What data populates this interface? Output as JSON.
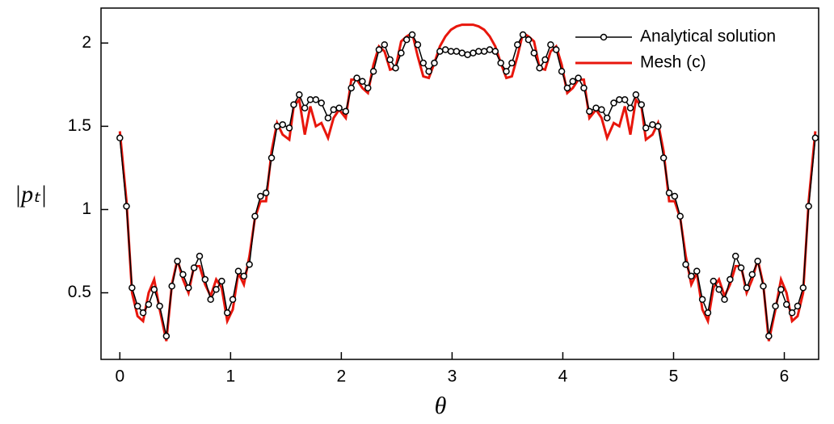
{
  "chart_data": {
    "type": "line",
    "xlabel": "θ",
    "ylabel": "|pₜ|",
    "xlim": [
      -0.17,
      6.31
    ],
    "ylim": [
      0.1,
      2.21
    ],
    "xticks": [
      0,
      1,
      2,
      3,
      4,
      5,
      6
    ],
    "yticks": [
      0.5,
      1,
      1.5,
      2
    ],
    "legend": "upper-right",
    "x": [
      0,
      0.06,
      0.11,
      0.16,
      0.21,
      0.26,
      0.31,
      0.36,
      0.42,
      0.47,
      0.52,
      0.57,
      0.62,
      0.67,
      0.72,
      0.77,
      0.82,
      0.87,
      0.92,
      0.97,
      1.02,
      1.07,
      1.12,
      1.17,
      1.22,
      1.27,
      1.32,
      1.37,
      1.42,
      1.47,
      1.53,
      1.57,
      1.62,
      1.67,
      1.72,
      1.77,
      1.82,
      1.88,
      1.93,
      1.98,
      2.04,
      2.09,
      2.14,
      2.19,
      2.24,
      2.29,
      2.34,
      2.39,
      2.44,
      2.49,
      2.54,
      2.59,
      2.64,
      2.69,
      2.74,
      2.79,
      2.84,
      2.89,
      2.94,
      2.99,
      3.04,
      3.09,
      3.14,
      3.19,
      3.24,
      3.29,
      3.34,
      3.39,
      3.44,
      3.49,
      3.54,
      3.59,
      3.64,
      3.69,
      3.74,
      3.79,
      3.84,
      3.89,
      3.94,
      3.99,
      4.04,
      4.09,
      4.14,
      4.19,
      4.24,
      4.3,
      4.35,
      4.4,
      4.46,
      4.51,
      4.56,
      4.61,
      4.66,
      4.71,
      4.75,
      4.81,
      4.86,
      4.91,
      4.96,
      5.01,
      5.06,
      5.11,
      5.16,
      5.21,
      5.26,
      5.31,
      5.36,
      5.41,
      5.46,
      5.51,
      5.56,
      5.61,
      5.66,
      5.71,
      5.76,
      5.81,
      5.86,
      5.92,
      5.97,
      6.02,
      6.07,
      6.12,
      6.17,
      6.22,
      6.28
    ],
    "series": [
      {
        "name": "Analytical solution",
        "color": "#000000",
        "marker": true,
        "values": [
          1.43,
          1.02,
          0.53,
          0.42,
          0.38,
          0.43,
          0.52,
          0.42,
          0.24,
          0.54,
          0.69,
          0.61,
          0.53,
          0.65,
          0.72,
          0.58,
          0.46,
          0.52,
          0.57,
          0.38,
          0.46,
          0.63,
          0.6,
          0.67,
          0.96,
          1.08,
          1.1,
          1.31,
          1.5,
          1.51,
          1.49,
          1.63,
          1.69,
          1.61,
          1.66,
          1.66,
          1.64,
          1.55,
          1.6,
          1.61,
          1.59,
          1.73,
          1.79,
          1.77,
          1.73,
          1.83,
          1.96,
          1.99,
          1.9,
          1.85,
          1.94,
          2.02,
          2.05,
          1.99,
          1.88,
          1.83,
          1.88,
          1.95,
          1.96,
          1.95,
          1.95,
          1.94,
          1.93,
          1.94,
          1.95,
          1.95,
          1.96,
          1.95,
          1.88,
          1.83,
          1.88,
          1.99,
          2.05,
          2.02,
          1.94,
          1.85,
          1.9,
          1.99,
          1.96,
          1.83,
          1.73,
          1.77,
          1.79,
          1.73,
          1.59,
          1.61,
          1.6,
          1.55,
          1.64,
          1.66,
          1.66,
          1.61,
          1.69,
          1.63,
          1.49,
          1.51,
          1.5,
          1.31,
          1.1,
          1.08,
          0.96,
          0.67,
          0.6,
          0.63,
          0.46,
          0.38,
          0.57,
          0.52,
          0.46,
          0.58,
          0.72,
          0.65,
          0.53,
          0.61,
          0.69,
          0.54,
          0.24,
          0.42,
          0.52,
          0.43,
          0.38,
          0.42,
          0.53,
          1.02,
          1.43
        ]
      },
      {
        "name": "Mesh (c)",
        "color": "#e8160c",
        "marker": false,
        "values": [
          1.47,
          1.05,
          0.5,
          0.36,
          0.33,
          0.5,
          0.58,
          0.4,
          0.21,
          0.55,
          0.7,
          0.58,
          0.5,
          0.66,
          0.66,
          0.55,
          0.48,
          0.58,
          0.53,
          0.33,
          0.4,
          0.62,
          0.55,
          0.72,
          0.95,
          1.05,
          1.05,
          1.35,
          1.52,
          1.45,
          1.42,
          1.62,
          1.66,
          1.45,
          1.62,
          1.5,
          1.52,
          1.43,
          1.55,
          1.6,
          1.55,
          1.78,
          1.78,
          1.73,
          1.7,
          1.87,
          1.98,
          1.95,
          1.84,
          1.85,
          2.01,
          2.04,
          2.06,
          1.92,
          1.8,
          1.79,
          1.88,
          1.98,
          2.04,
          2.08,
          2.1,
          2.11,
          2.11,
          2.11,
          2.1,
          2.08,
          2.04,
          1.98,
          1.88,
          1.79,
          1.8,
          1.92,
          2.06,
          2.04,
          2.01,
          1.85,
          1.84,
          1.95,
          1.98,
          1.87,
          1.7,
          1.73,
          1.78,
          1.78,
          1.55,
          1.6,
          1.55,
          1.43,
          1.52,
          1.5,
          1.62,
          1.45,
          1.66,
          1.62,
          1.42,
          1.45,
          1.52,
          1.35,
          1.05,
          1.05,
          0.95,
          0.72,
          0.55,
          0.62,
          0.4,
          0.33,
          0.53,
          0.58,
          0.48,
          0.55,
          0.66,
          0.66,
          0.5,
          0.58,
          0.7,
          0.55,
          0.21,
          0.4,
          0.58,
          0.5,
          0.33,
          0.36,
          0.5,
          1.05,
          1.47
        ]
      }
    ]
  }
}
